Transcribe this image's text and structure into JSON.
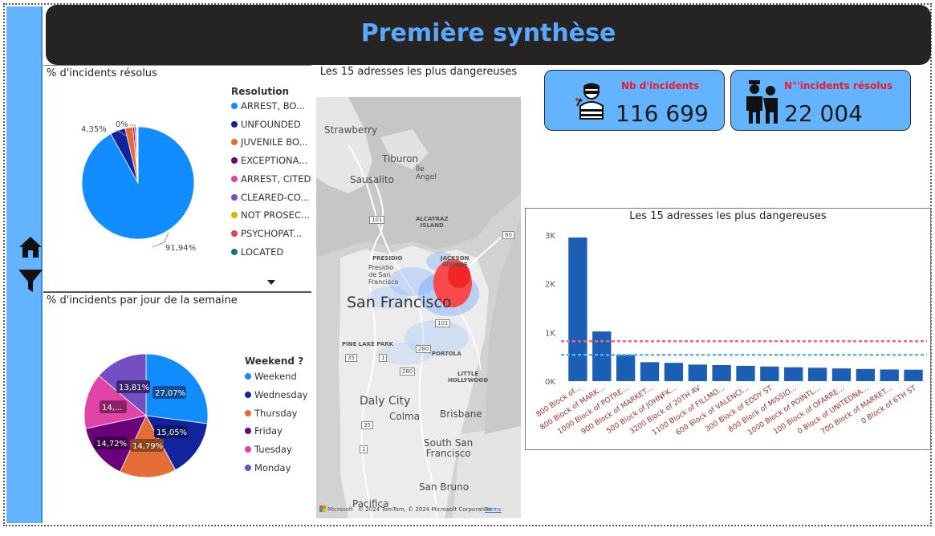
{
  "header": {
    "title": "Première synthèse"
  },
  "rail": {
    "icons": [
      "home-icon",
      "filter-icon"
    ]
  },
  "resolved_pie": {
    "title": "% d'incidents résolus",
    "legend_title": "Resolution",
    "legend": [
      {
        "label": "ARREST, BO...",
        "color": "#118dff"
      },
      {
        "label": "UNFOUNDED",
        "color": "#12239e"
      },
      {
        "label": "JUVENILE BO...",
        "color": "#e66c37"
      },
      {
        "label": "EXCEPTIONA...",
        "color": "#6b007b"
      },
      {
        "label": "ARREST, CITED",
        "color": "#e044a7"
      },
      {
        "label": "CLEARED-CO...",
        "color": "#744ec2"
      },
      {
        "label": "NOT PROSEC...",
        "color": "#d9b300"
      },
      {
        "label": "PSYCHOPAT...",
        "color": "#d64550"
      },
      {
        "label": "LOCATED",
        "color": "#197278"
      }
    ],
    "labels": {
      "main": "91,94%",
      "second": "4,35%",
      "zero": "0%"
    },
    "scroll_icon": "chevron-down-icon"
  },
  "weekday_pie": {
    "title": "% d'incidents par jour de la semaine",
    "legend_title": "Weekend ?",
    "legend": [
      {
        "label": "Weekend",
        "color": "#118dff"
      },
      {
        "label": "Wednesday",
        "color": "#12239e"
      },
      {
        "label": "Thursday",
        "color": "#e66c37"
      },
      {
        "label": "Friday",
        "color": "#6b007b"
      },
      {
        "label": "Tuesday",
        "color": "#e044a7"
      },
      {
        "label": "Monday",
        "color": "#744ec2"
      }
    ],
    "labels": {
      "weekend": "27,07%",
      "wednesday": "15,05%",
      "thursday": "14,79%",
      "friday": "14,72%",
      "tuesday": "14,...",
      "monday": "13,81%"
    }
  },
  "map": {
    "title": "Les 15 adresses les plus dangereuses",
    "places": {
      "strawberry": "Strawberry",
      "tiburon": "Tiburon",
      "sausalito": "Sausalito",
      "ile_angel": "Île\nAngel",
      "alcatraz": "ALCATRAZ\nISLAND",
      "presidio": "PRESIDIO",
      "presidio_sf": "Presidio\nde San\nFrancisco",
      "jackson": "JACKSON\nSQUARE",
      "san_francisco": "San Francisco",
      "pine_lake": "PINE LAKE PARK",
      "portola": "PORTOLA",
      "little_hollywood": "LITTLE\nHOLLYWOOD",
      "daly_city": "Daly City",
      "colma": "Colma",
      "brisbane": "Brisbane",
      "south_sf": "South San\nFrancisco",
      "san_bruno": "San Bruno",
      "pacifica": "Pacifica"
    },
    "roads": {
      "r101a": "101",
      "r80": "80",
      "r101b": "101",
      "r35a": "35",
      "r1a": "1",
      "r280a": "280",
      "r280b": "280",
      "r35b": "35",
      "r1b": "1"
    },
    "attribution": {
      "brand": "Microsoft",
      "copyright": "© 2024 TomTom, © 2024 Microsoft Corporation",
      "terms": "Terms"
    }
  },
  "kpis": [
    {
      "label": "Nb d'incidents",
      "value": "116 699",
      "icon": "burglar-icon"
    },
    {
      "label": "N°'incidents résolus",
      "value": "22 004",
      "icon": "police-arrest-icon"
    }
  ],
  "chart_data": [
    {
      "type": "pie",
      "title": "% d'incidents résolus",
      "legend_title": "Resolution",
      "categories": [
        "ARREST, BO...",
        "UNFOUNDED",
        "JUVENILE BO...",
        "EXCEPTIONA...",
        "ARREST, CITED",
        "CLEARED-CO...",
        "NOT PROSEC...",
        "PSYCHOPAT...",
        "LOCATED"
      ],
      "values": [
        91.94,
        4.35,
        2.2,
        0.5,
        0.5,
        0.2,
        0.15,
        0.1,
        0.06
      ]
    },
    {
      "type": "pie",
      "title": "% d'incidents par jour de la semaine",
      "legend_title": "Weekend ?",
      "categories": [
        "Weekend",
        "Wednesday",
        "Thursday",
        "Friday",
        "Tuesday",
        "Monday"
      ],
      "values": [
        27.07,
        15.05,
        14.79,
        14.72,
        14.56,
        13.81
      ]
    },
    {
      "type": "bar",
      "title": "Les 15 adresses les plus dangereuses",
      "categories": [
        "800 Block of...",
        "800 Block of MARK...",
        "1000 Block of POTRE...",
        "900 Block of MARKET...",
        "500 Block of JOHNFK...",
        "3200 Block of 20TH AV",
        "1100 Block of FILLMO...",
        "600 Block of VALENCI...",
        "300 Block of EDDY ST",
        "800 Block of MISSIO...",
        "1000 Block of POINTL...",
        "100 Block of OFARRE...",
        "0 Block of UNITEDNA...",
        "700 Block of MARKET...",
        "0 Block of 6TH ST"
      ],
      "values": [
        2950,
        1020,
        540,
        390,
        375,
        340,
        330,
        315,
        300,
        285,
        275,
        260,
        250,
        240,
        235
      ],
      "yticks": [
        "0K",
        "1K",
        "2K",
        "3K"
      ],
      "ylim": [
        0,
        3000
      ],
      "reference_lines": [
        {
          "value": 820,
          "color": "#f0657a"
        },
        {
          "value": 540,
          "color": "#5bb4f0"
        }
      ],
      "bar_color": "#1a5fb4"
    }
  ]
}
